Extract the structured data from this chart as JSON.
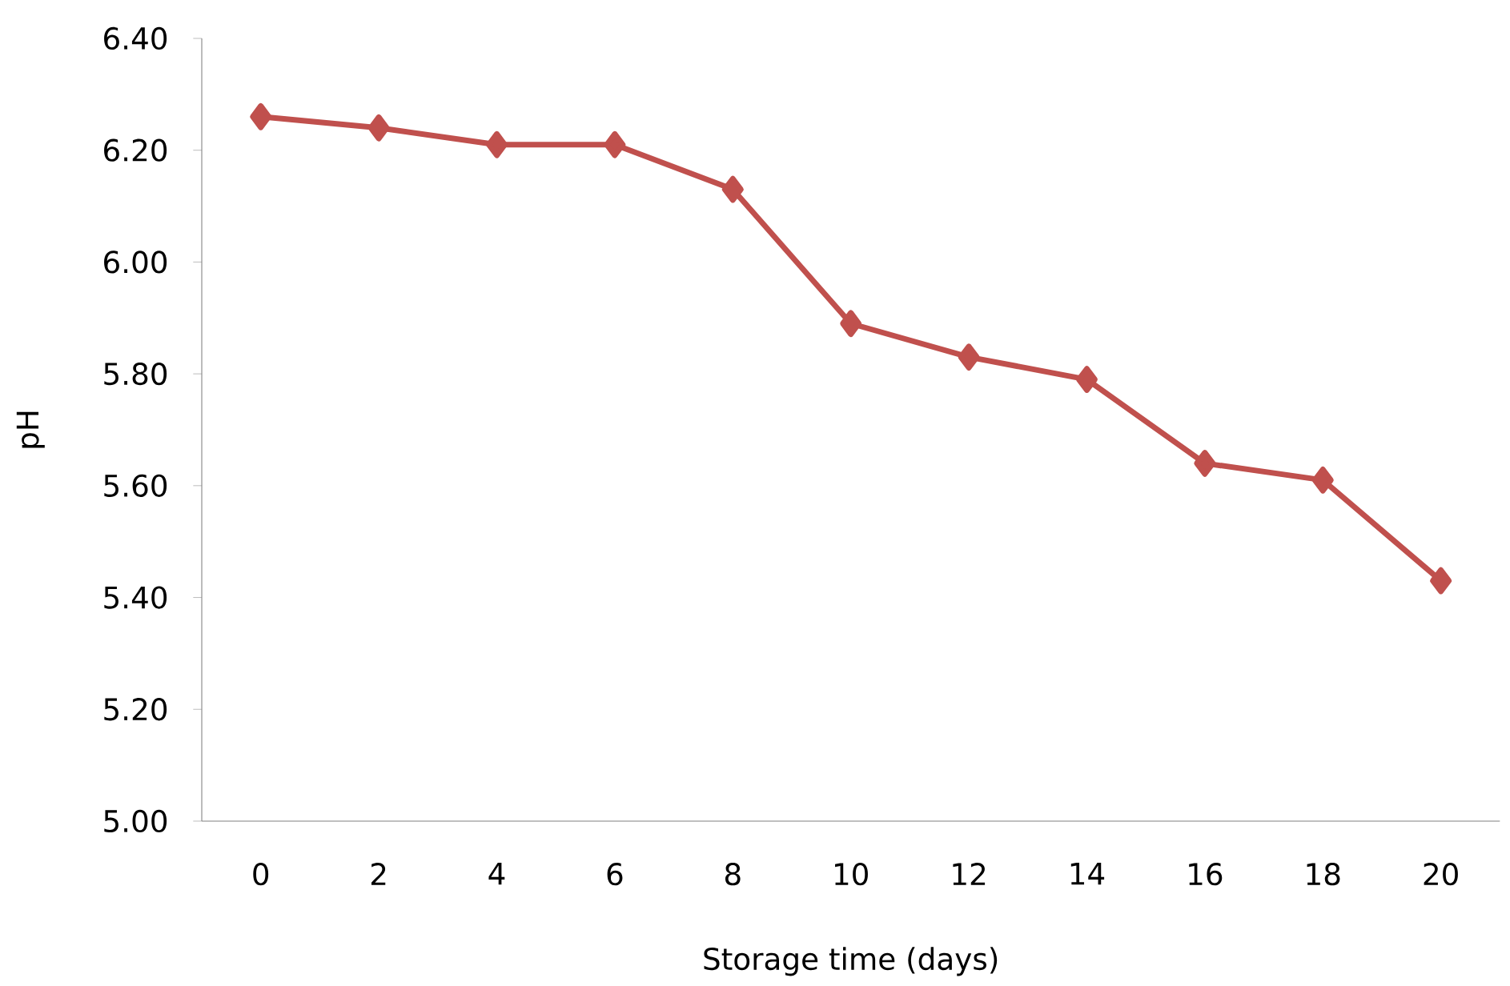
{
  "chart_data": {
    "type": "line",
    "xlabel": "Storage time (days)",
    "ylabel": "pH",
    "categories": [
      "0",
      "2",
      "4",
      "6",
      "8",
      "10",
      "12",
      "14",
      "16",
      "18",
      "20"
    ],
    "series": [
      {
        "color": "#c0504d",
        "values": [
          6.26,
          6.24,
          6.21,
          6.21,
          6.13,
          5.89,
          5.83,
          5.79,
          5.64,
          5.61,
          5.43
        ]
      }
    ],
    "ylim": [
      5.0,
      6.4
    ],
    "yticks": [
      {
        "value": 5.0,
        "label": "5.00"
      },
      {
        "value": 5.2,
        "label": "5.20"
      },
      {
        "value": 5.4,
        "label": "5.40"
      },
      {
        "value": 5.6,
        "label": "5.60"
      },
      {
        "value": 5.8,
        "label": "5.80"
      },
      {
        "value": 6.0,
        "label": "6.00"
      },
      {
        "value": 6.2,
        "label": "6.20"
      },
      {
        "value": 6.4,
        "label": "6.40"
      }
    ],
    "grid": false,
    "marker": "diamond",
    "line_style": "solid"
  }
}
